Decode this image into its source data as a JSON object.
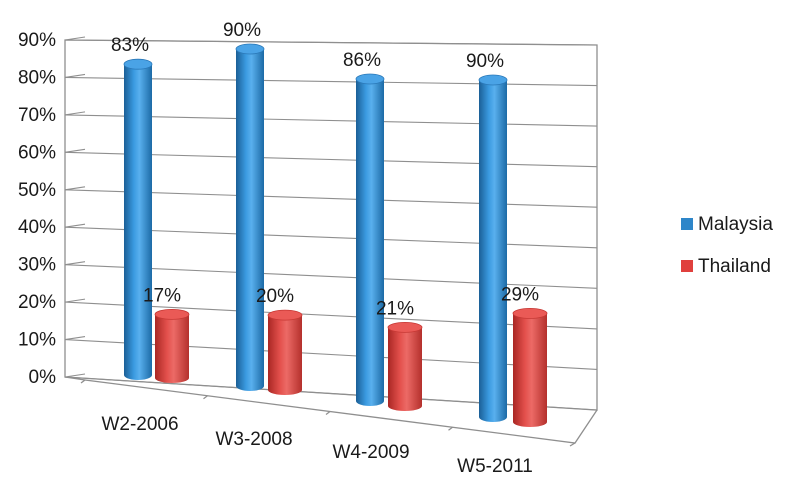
{
  "chart_data": {
    "type": "bar",
    "categories": [
      "W2-2006",
      "W3-2008",
      "W4-2009",
      "W5-2011"
    ],
    "series": [
      {
        "name": "Malaysia",
        "values": [
          83,
          90,
          86,
          90
        ],
        "labels": [
          "83%",
          "90%",
          "86%",
          "90%"
        ],
        "color": "#2e86c9"
      },
      {
        "name": "Thailand",
        "values": [
          17,
          20,
          21,
          29
        ],
        "labels": [
          "17%",
          "20%",
          "21%",
          "29%"
        ],
        "color": "#e0403d"
      }
    ],
    "y_ticks": [
      "0%",
      "10%",
      "20%",
      "30%",
      "40%",
      "50%",
      "60%",
      "70%",
      "80%",
      "90%"
    ],
    "ylim": [
      0,
      90
    ],
    "title": "",
    "xlabel": "",
    "ylabel": "",
    "grid": true,
    "legend_position": "right"
  }
}
